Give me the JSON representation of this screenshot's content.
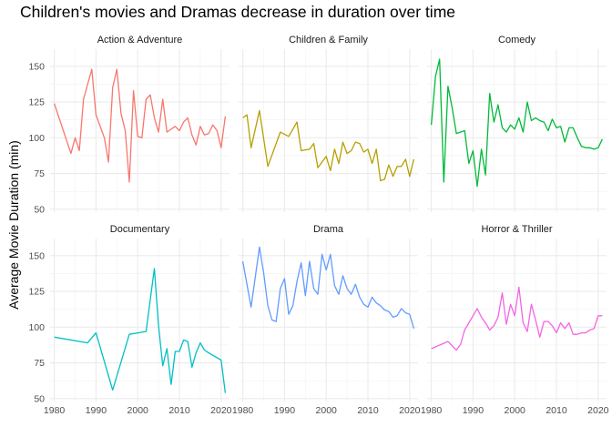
{
  "chart_data": {
    "type": "line",
    "title": "Children's movies and Dramas decrease in duration over time",
    "xlabel": "",
    "ylabel": "Average Movie Duration (min)",
    "xlim": [
      1979,
      2022
    ],
    "ylim": [
      48,
      162
    ],
    "xticks": [
      1980,
      1990,
      2000,
      2010,
      2020
    ],
    "yticks": [
      50,
      75,
      100,
      125,
      150
    ],
    "grid": true,
    "legend": "none",
    "facets": [
      {
        "name": "Action & Adventure",
        "color": "#F8766D",
        "x": [
          1980,
          1984,
          1985,
          1986,
          1987,
          1989,
          1990,
          1992,
          1993,
          1994,
          1995,
          1996,
          1997,
          1998,
          1999,
          2000,
          2001,
          2002,
          2003,
          2004,
          2005,
          2006,
          2007,
          2008,
          2009,
          2010,
          2011,
          2012,
          2013,
          2014,
          2015,
          2016,
          2017,
          2018,
          2019,
          2020,
          2021
        ],
        "y": [
          124,
          89,
          100,
          91,
          127,
          148,
          116,
          100,
          83,
          135,
          148,
          117,
          105,
          69,
          133,
          101,
          100,
          127,
          130,
          114,
          104,
          127,
          104,
          106,
          108,
          105,
          111,
          114,
          102,
          95,
          108,
          102,
          103,
          109,
          105,
          93,
          115
        ]
      },
      {
        "name": "Children & Family",
        "color": "#B79F00",
        "x": [
          1980,
          1981,
          1982,
          1984,
          1986,
          1989,
          1991,
          1992,
          1993,
          1994,
          1996,
          1997,
          1998,
          2000,
          2001,
          2002,
          2003,
          2004,
          2005,
          2006,
          2007,
          2008,
          2009,
          2010,
          2011,
          2012,
          2013,
          2014,
          2015,
          2016,
          2017,
          2018,
          2019,
          2020,
          2021
        ],
        "y": [
          114,
          116,
          93,
          119,
          80,
          104,
          101,
          106,
          111,
          91,
          92,
          96,
          79,
          87,
          77,
          92,
          82,
          97,
          89,
          91,
          97,
          96,
          90,
          92,
          82,
          92,
          70,
          71,
          81,
          73,
          80,
          80,
          85,
          73,
          85
        ]
      },
      {
        "name": "Comedy",
        "color": "#00BA38",
        "x": [
          1980,
          1981,
          1982,
          1983,
          1984,
          1985,
          1986,
          1988,
          1989,
          1990,
          1991,
          1992,
          1993,
          1994,
          1995,
          1996,
          1997,
          1998,
          1999,
          2000,
          2001,
          2002,
          2003,
          2004,
          2005,
          2006,
          2007,
          2008,
          2009,
          2010,
          2011,
          2012,
          2013,
          2014,
          2015,
          2016,
          2017,
          2018,
          2019,
          2020,
          2021
        ],
        "y": [
          109,
          143,
          155,
          69,
          136,
          121,
          103,
          105,
          82,
          91,
          66,
          92,
          74,
          131,
          111,
          123,
          107,
          104,
          109,
          106,
          114,
          104,
          125,
          112,
          114,
          112,
          111,
          105,
          113,
          107,
          108,
          97,
          107,
          107,
          100,
          94,
          93,
          93,
          92,
          93,
          99
        ]
      },
      {
        "name": "Documentary",
        "color": "#00BFC4",
        "x": [
          1980,
          1988,
          1990,
          1994,
          1998,
          2002,
          2004,
          2005,
          2006,
          2007,
          2008,
          2009,
          2010,
          2011,
          2012,
          2013,
          2014,
          2015,
          2016,
          2017,
          2020,
          2021
        ],
        "y": [
          93,
          89,
          96,
          56,
          95,
          97,
          141,
          101,
          73,
          85,
          60,
          83,
          83,
          91,
          90,
          72,
          82,
          89,
          84,
          82,
          77,
          54
        ]
      },
      {
        "name": "Drama",
        "color": "#619CFF",
        "x": [
          1980,
          1982,
          1983,
          1984,
          1985,
          1986,
          1987,
          1988,
          1989,
          1990,
          1991,
          1992,
          1993,
          1994,
          1995,
          1996,
          1997,
          1998,
          1999,
          2000,
          2001,
          2002,
          2003,
          2004,
          2005,
          2006,
          2007,
          2008,
          2009,
          2010,
          2011,
          2012,
          2013,
          2014,
          2015,
          2016,
          2017,
          2018,
          2019,
          2020,
          2021
        ],
        "y": [
          146,
          114,
          135,
          156,
          138,
          115,
          105,
          104,
          127,
          134,
          109,
          115,
          132,
          145,
          122,
          146,
          127,
          123,
          151,
          140,
          151,
          129,
          123,
          136,
          127,
          123,
          130,
          121,
          116,
          114,
          121,
          117,
          115,
          112,
          111,
          107,
          108,
          113,
          110,
          109,
          99
        ]
      },
      {
        "name": "Horror & Thriller",
        "color": "#F564E3",
        "x": [
          1980,
          1984,
          1986,
          1987,
          1988,
          1990,
          1991,
          1992,
          1993,
          1994,
          1995,
          1996,
          1997,
          1998,
          1999,
          2000,
          2001,
          2002,
          2003,
          2004,
          2005,
          2006,
          2007,
          2008,
          2009,
          2010,
          2011,
          2012,
          2013,
          2014,
          2015,
          2016,
          2017,
          2018,
          2019,
          2020,
          2021
        ],
        "y": [
          85,
          90,
          84,
          88,
          98,
          108,
          113,
          107,
          103,
          98,
          101,
          107,
          124,
          102,
          116,
          108,
          128,
          103,
          97,
          116,
          105,
          93,
          104,
          104,
          101,
          96,
          103,
          99,
          103,
          95,
          95,
          96,
          96,
          98,
          99,
          108,
          108
        ]
      }
    ]
  }
}
